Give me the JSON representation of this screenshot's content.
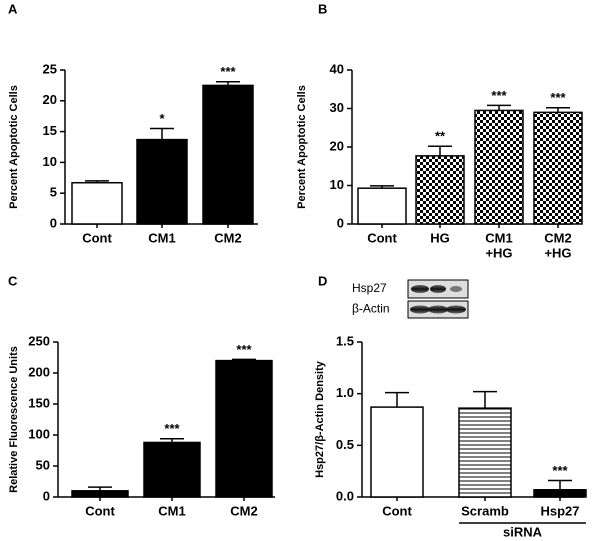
{
  "chart_data": [
    {
      "type": "bar",
      "label": "A",
      "y_label": "Percent Apoptotic Cells",
      "categories": [
        "Cont",
        "CM1",
        "CM2"
      ],
      "values": [
        6.7,
        13.7,
        22.5
      ],
      "errors": [
        0.3,
        1.8,
        0.6
      ],
      "annotations": [
        null,
        "*",
        "***"
      ],
      "fills": [
        "#ffffff",
        "#000000",
        "#000000"
      ],
      "ylim": [
        0,
        25
      ],
      "yticks": [
        0,
        5,
        10,
        15,
        20,
        25
      ]
    },
    {
      "type": "bar",
      "label": "B",
      "y_label": "Percent Apoptotic Cells",
      "categories": [
        "Cont",
        "HG",
        [
          "CM1",
          "+HG"
        ],
        [
          "CM2",
          "+HG"
        ]
      ],
      "values": [
        9.3,
        17.7,
        29.5,
        29
      ],
      "errors": [
        0.6,
        2.5,
        1.3,
        1.2
      ],
      "annotations": [
        null,
        "**",
        "***",
        "***"
      ],
      "fills": [
        "#ffffff",
        "checker",
        "checker",
        "checker"
      ],
      "ylim": [
        0,
        40
      ],
      "yticks": [
        0,
        10,
        20,
        30,
        40
      ]
    },
    {
      "type": "bar",
      "label": "C",
      "y_label": "Relative Fluorescence Units",
      "categories": [
        "Cont",
        "CM1",
        "CM2"
      ],
      "values": [
        10,
        88,
        220
      ],
      "errors": [
        6,
        6,
        2
      ],
      "annotations": [
        null,
        "***",
        "***"
      ],
      "fills": [
        "#000000",
        "#000000",
        "#000000"
      ],
      "ylim": [
        0,
        250
      ],
      "yticks": [
        0,
        50,
        100,
        150,
        200,
        250
      ]
    },
    {
      "type": "bar",
      "label": "D",
      "y_label": "Hsp27/β-Actin Density",
      "categories": [
        "Cont",
        "Scramb",
        "Hsp27"
      ],
      "values": [
        0.87,
        0.86,
        0.07
      ],
      "errors": [
        0.14,
        0.16,
        0.09
      ],
      "annotations": [
        null,
        null,
        "***"
      ],
      "fills": [
        "#ffffff",
        "hlines",
        "#000000"
      ],
      "group_label": "siRNA",
      "blot_labels": [
        "Hsp27",
        "β-Actin"
      ],
      "ylim": [
        0,
        1.5
      ],
      "yticks": [
        {
          "value": 0,
          "label": "0.0"
        },
        {
          "value": 0.5,
          "label": "0.5"
        },
        {
          "value": 1,
          "label": "1.0"
        },
        {
          "value": 1.5,
          "label": "1.5"
        }
      ]
    }
  ]
}
